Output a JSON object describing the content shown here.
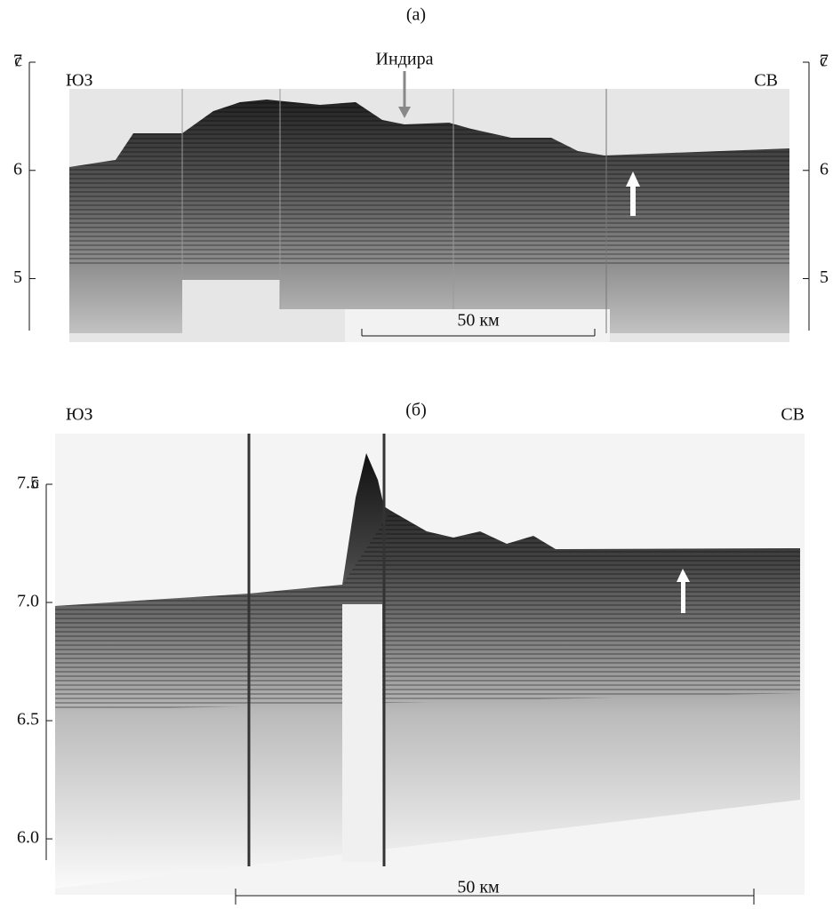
{
  "panels": [
    {
      "label": "(a)",
      "unit": "с",
      "ylim": [
        4.52,
        7
      ],
      "yticks": [
        5,
        6,
        7
      ],
      "left_label": "ЮЗ",
      "right_label": "СВ",
      "annotation": "Индира",
      "scale": "50 км"
    },
    {
      "label": "(б)",
      "unit": "с",
      "ylim": [
        5.91,
        7.5
      ],
      "yticks": [
        {
          "value": 6,
          "label": "6.0"
        },
        {
          "value": 6.5,
          "label": "6.5"
        },
        {
          "value": 7,
          "label": "7.0"
        },
        {
          "value": 7.5,
          "label": "7.5"
        }
      ],
      "left_label": "ЮЗ",
      "right_label": "СВ",
      "scale": "50 км"
    }
  ]
}
